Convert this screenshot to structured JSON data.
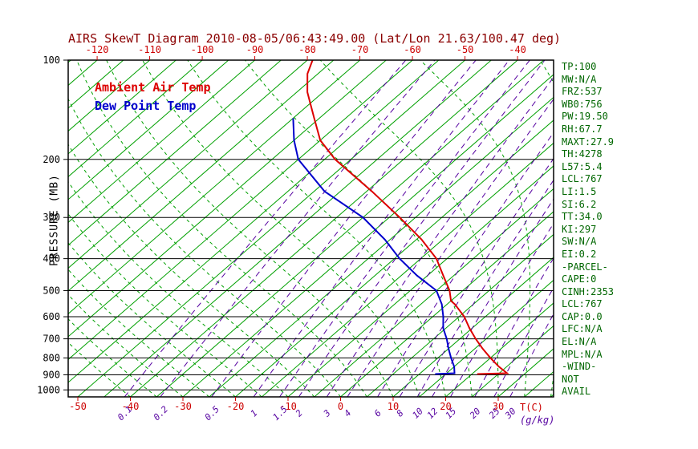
{
  "title": "AIRS SkewT Diagram 2010-08-05/06:43:49.00 (Lat/Lon 21.63/100.47 deg)",
  "colors": {
    "title": "#8b0000",
    "isotherm": "#00a000",
    "moist_adiabat": "#00a000",
    "mixing_ratio": "#5500a0",
    "pressure_line": "#000000",
    "axis_red": "#cc0000",
    "legend_green": "#006600",
    "temp_profile": "#dd0000",
    "dewpoint_profile": "#0000cc"
  },
  "indices_panel": [
    "TP:100",
    "MW:N/A",
    "FRZ:537",
    "WB0:756",
    "PW:19.50",
    "RH:67.7",
    "MAXT:27.9",
    "TH:4278",
    "L57:5.4",
    "LCL:767",
    "LI:1.5",
    "SI:6.2",
    "TT:34.0",
    "KI:297",
    "SW:N/A",
    "EI:0.2",
    "-PARCEL-",
    "CAPE:0",
    "CINH:2353",
    "LCL:767",
    "CAP:0.0",
    "LFC:N/A",
    "EL:N/A",
    "MPL:N/A",
    "-WIND-",
    "NOT",
    "AVAIL"
  ],
  "chart_data": {
    "type": "line",
    "variant": "skew-t-log-p",
    "title": "AIRS SkewT Diagram 2010-08-05/06:43:49.00 (Lat/Lon 21.63/100.47 deg)",
    "xlabel": "T(C)",
    "ylabel": "PRESSURE (MB)",
    "mixing_ratio_unit": "(g/kg)",
    "pressure_range": [
      100,
      1050
    ],
    "pressure_ticks": [
      100,
      200,
      300,
      400,
      500,
      600,
      700,
      800,
      900,
      1000
    ],
    "top_temp_labels": [
      -120,
      -110,
      -100,
      -90,
      -80,
      -70,
      -60,
      -50,
      -40
    ],
    "bottom_temp_labels": [
      -50,
      -40,
      -30,
      -20,
      -10,
      0,
      10,
      20,
      30
    ],
    "isotherm_range": [
      -130,
      45
    ],
    "isotherm_step": 5,
    "mixing_ratio_lines": [
      0.1,
      0.2,
      0.5,
      1,
      1.5,
      2,
      3,
      4,
      6,
      8,
      10,
      12,
      15,
      20,
      25,
      30
    ],
    "moist_adiabat_start_temps": [
      -40,
      -35,
      -30,
      -25,
      -20,
      -15,
      -10,
      -5,
      0,
      5,
      10,
      15,
      20,
      25,
      30,
      35,
      40,
      45
    ],
    "series": [
      {
        "name": "Ambient Air Temp",
        "color": "#dd0000",
        "points_p_T": [
          [
            895,
            21
          ],
          [
            890,
            26.5
          ],
          [
            850,
            23.5
          ],
          [
            800,
            20
          ],
          [
            750,
            16.5
          ],
          [
            700,
            13
          ],
          [
            650,
            9.5
          ],
          [
            600,
            6
          ],
          [
            550,
            1.5
          ],
          [
            537,
            0
          ],
          [
            500,
            -2.5
          ],
          [
            450,
            -7
          ],
          [
            400,
            -12
          ],
          [
            350,
            -19
          ],
          [
            300,
            -28
          ],
          [
            250,
            -39
          ],
          [
            200,
            -53
          ],
          [
            175,
            -60
          ],
          [
            150,
            -66
          ],
          [
            125,
            -73
          ],
          [
            110,
            -77
          ],
          [
            100,
            -79
          ]
        ]
      },
      {
        "name": "Dew Point Temp",
        "color": "#0000cc",
        "points_p_T": [
          [
            895,
            13
          ],
          [
            890,
            16.5
          ],
          [
            850,
            15
          ],
          [
            800,
            12.5
          ],
          [
            750,
            10
          ],
          [
            700,
            7.5
          ],
          [
            650,
            4.5
          ],
          [
            600,
            2
          ],
          [
            550,
            -1
          ],
          [
            500,
            -5
          ],
          [
            450,
            -12
          ],
          [
            400,
            -19
          ],
          [
            350,
            -26
          ],
          [
            300,
            -35
          ],
          [
            250,
            -48
          ],
          [
            200,
            -60
          ],
          [
            175,
            -65
          ],
          [
            150,
            -70
          ]
        ]
      }
    ]
  }
}
